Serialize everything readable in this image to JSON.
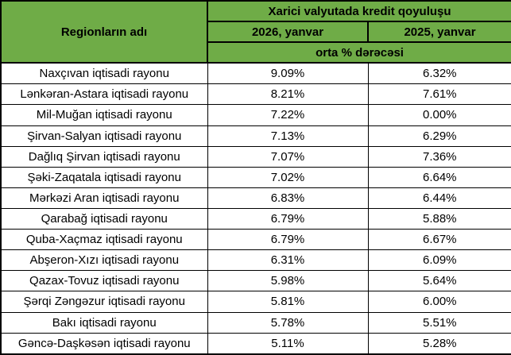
{
  "colors": {
    "header_bg": "#6FAC47",
    "border": "#000000",
    "cell_bg": "#FFFFFF",
    "text": "#000000"
  },
  "chart_data": {
    "type": "table",
    "title": "Xarici valyutada kredit qoyuluşu",
    "row_header": "Regionların adı",
    "group_header": "Xarici valyutada kredit qoyuluşu",
    "columns": [
      "2026, yanvar",
      "2025, yanvar"
    ],
    "subheader": "orta % dərəcəsi",
    "rows": [
      {
        "region": "Naxçıvan iqtisadi rayonu",
        "v2026": "9.09%",
        "v2025": "6.32%"
      },
      {
        "region": "Lənkəran-Astara iqtisadi rayonu",
        "v2026": "8.21%",
        "v2025": "7.61%"
      },
      {
        "region": "Mil-Muğan iqtisadi rayonu",
        "v2026": "7.22%",
        "v2025": "0.00%"
      },
      {
        "region": "Şirvan-Salyan iqtisadi rayonu",
        "v2026": "7.13%",
        "v2025": "6.29%"
      },
      {
        "region": "Dağlıq Şirvan iqtisadi rayonu",
        "v2026": "7.07%",
        "v2025": "7.36%"
      },
      {
        "region": "Şəki-Zaqatala iqtisadi rayonu",
        "v2026": "7.02%",
        "v2025": "6.64%"
      },
      {
        "region": "Mərkəzi Aran iqtisadi rayonu",
        "v2026": "6.83%",
        "v2025": "6.44%"
      },
      {
        "region": "Qarabağ iqtisadi rayonu",
        "v2026": "6.79%",
        "v2025": "5.88%"
      },
      {
        "region": "Quba-Xaçmaz iqtisadi rayonu",
        "v2026": "6.79%",
        "v2025": "6.67%"
      },
      {
        "region": "Abşeron-Xızı iqtisadi rayonu",
        "v2026": "6.31%",
        "v2025": "6.09%"
      },
      {
        "region": "Qazax-Tovuz iqtisadi rayonu",
        "v2026": "5.98%",
        "v2025": "5.64%"
      },
      {
        "region": "Şərqi Zəngəzur iqtisadi rayonu",
        "v2026": "5.81%",
        "v2025": "6.00%"
      },
      {
        "region": "Bakı iqtisadi rayonu",
        "v2026": "5.78%",
        "v2025": "5.51%"
      },
      {
        "region": "Gəncə-Daşkəsən iqtisadi rayonu",
        "v2026": "5.11%",
        "v2025": "5.28%"
      }
    ]
  }
}
